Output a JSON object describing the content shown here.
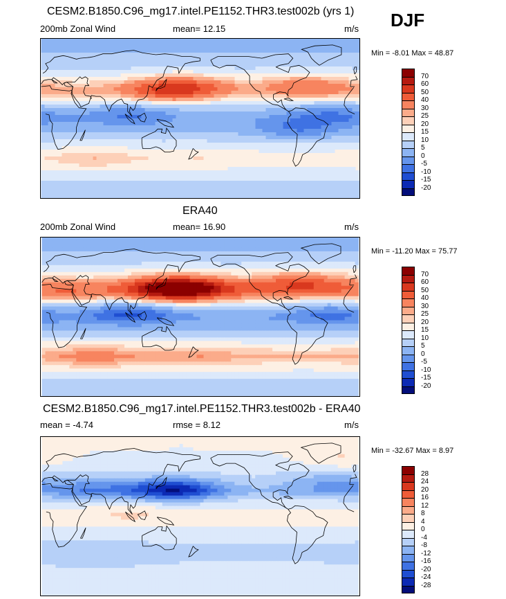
{
  "season": "DJF",
  "panels": [
    {
      "title": "CESM2.B1850.C96_mg17.intel.PE1152.THR3.test002b (yrs 1)",
      "left": "200mb Zonal Wind",
      "center": "mean=  12.15",
      "right": "m/s",
      "minmax": "Min = -8.01 Max = 48.87"
    },
    {
      "title": "ERA40",
      "left": "200mb Zonal Wind",
      "center": "mean=  16.90",
      "right": "m/s",
      "minmax": "Min = -11.20 Max = 75.77"
    },
    {
      "title": "CESM2.B1850.C96_mg17.intel.PE1152.THR3.test002b - ERA40",
      "left": "mean =  -4.74",
      "center": "rmse =   8.12",
      "right": "m/s",
      "minmax": "Min = -32.67 Max =  8.97"
    }
  ],
  "colorbars": {
    "wind": {
      "labels": [
        "70",
        "60",
        "50",
        "40",
        "30",
        "25",
        "20",
        "15",
        "10",
        "5",
        "0",
        "-5",
        "-10",
        "-15",
        "-20"
      ],
      "colors": [
        "#8b0000",
        "#b51a10",
        "#d9381e",
        "#ef5c38",
        "#f7845f",
        "#fbab8a",
        "#fdd0b8",
        "#fdf0e4",
        "#dce9fb",
        "#b6d0f8",
        "#8cb4f3",
        "#6595ec",
        "#3f72e3",
        "#1f4ed2",
        "#0c2ab4",
        "#030e7a"
      ]
    },
    "diff": {
      "labels": [
        "28",
        "24",
        "20",
        "16",
        "12",
        "8",
        "4",
        "0",
        "-4",
        "-8",
        "-12",
        "-16",
        "-20",
        "-24",
        "-28"
      ],
      "colors": [
        "#8b0000",
        "#b51a10",
        "#d9381e",
        "#ef5c38",
        "#f7845f",
        "#fbab8a",
        "#fdd0b8",
        "#fdf0e4",
        "#dce9fb",
        "#b6d0f8",
        "#8cb4f3",
        "#6595ec",
        "#3f72e3",
        "#1f4ed2",
        "#0c2ab4",
        "#030e7a"
      ]
    }
  },
  "chart_data": [
    {
      "type": "heatmap",
      "title": "CESM2.B1850.C96_mg17.intel.PE1152.THR3.test002b (yrs 1)",
      "variable": "200mb Zonal Wind",
      "units": "m/s",
      "mean": 12.15,
      "min": -8.01,
      "max": 48.87,
      "season": "DJF",
      "levels": [
        -20,
        -15,
        -10,
        -5,
        0,
        5,
        10,
        15,
        20,
        25,
        30,
        40,
        50,
        60,
        70
      ],
      "features": [
        {
          "lon": 140,
          "lat": 32,
          "value": 45
        },
        {
          "lon": 170,
          "lat": 35,
          "value": 40
        },
        {
          "lon": -60,
          "lat": 36,
          "value": 40
        },
        {
          "lon": 30,
          "lat": 28,
          "value": 25
        },
        {
          "lon": -100,
          "lat": 28,
          "value": 20
        },
        {
          "lon": 100,
          "lat": 5,
          "value": -5
        },
        {
          "lon": -30,
          "lat": 5,
          "value": -5
        },
        {
          "lon": -70,
          "lat": -12,
          "value": -5
        },
        {
          "lon": 60,
          "lat": -45,
          "value": 25
        },
        {
          "lon": 180,
          "lat": -45,
          "value": 20
        }
      ]
    },
    {
      "type": "heatmap",
      "title": "ERA40",
      "variable": "200mb Zonal Wind",
      "units": "m/s",
      "mean": 16.9,
      "min": -11.2,
      "max": 75.77,
      "season": "DJF",
      "levels": [
        -20,
        -15,
        -10,
        -5,
        0,
        5,
        10,
        15,
        20,
        25,
        30,
        40,
        50,
        60,
        70
      ],
      "features": [
        {
          "lon": 145,
          "lat": 32,
          "value": 70
        },
        {
          "lon": 170,
          "lat": 32,
          "value": 60
        },
        {
          "lon": -65,
          "lat": 38,
          "value": 50
        },
        {
          "lon": 30,
          "lat": 28,
          "value": 40
        },
        {
          "lon": -120,
          "lat": 25,
          "value": 30
        },
        {
          "lon": 100,
          "lat": 5,
          "value": -10
        },
        {
          "lon": -30,
          "lat": 5,
          "value": -5
        },
        {
          "lon": 60,
          "lat": -45,
          "value": 35
        },
        {
          "lon": 180,
          "lat": -45,
          "value": 30
        }
      ]
    },
    {
      "type": "heatmap",
      "title": "CESM2.B1850.C96_mg17.intel.PE1152.THR3.test002b - ERA40",
      "units": "m/s",
      "mean": -4.74,
      "rmse": 8.12,
      "min": -32.67,
      "max": 8.97,
      "season": "DJF",
      "levels": [
        -28,
        -24,
        -20,
        -16,
        -12,
        -8,
        -4,
        0,
        4,
        8,
        12,
        16,
        20,
        24,
        28
      ],
      "features": [
        {
          "lon": 150,
          "lat": 30,
          "value": -28
        },
        {
          "lon": 60,
          "lat": 30,
          "value": -16
        },
        {
          "lon": -30,
          "lat": 40,
          "value": -12
        },
        {
          "lon": -120,
          "lat": 30,
          "value": -8
        },
        {
          "lon": 100,
          "lat": 5,
          "value": 4
        },
        {
          "lon": -20,
          "lat": 65,
          "value": 4
        },
        {
          "lon": 60,
          "lat": -45,
          "value": -8
        }
      ]
    }
  ]
}
